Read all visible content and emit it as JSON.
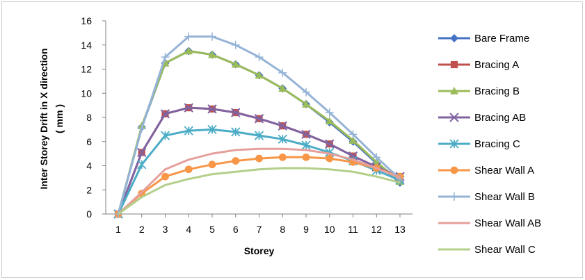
{
  "chart_data": {
    "type": "line",
    "title": "",
    "xlabel": "Storey",
    "ylabel_line1": "Inter  Storey  Drift in X direction",
    "ylabel_line2": "( mm )",
    "x": [
      1,
      2,
      3,
      4,
      5,
      6,
      7,
      8,
      9,
      10,
      11,
      12,
      13
    ],
    "xticks": [
      "1",
      "2",
      "3",
      "4",
      "5",
      "6",
      "7",
      "8",
      "9",
      "10",
      "11",
      "12",
      "13"
    ],
    "yticks": [
      "0",
      "2",
      "4",
      "6",
      "8",
      "10",
      "12",
      "14",
      "16"
    ],
    "ylim": [
      0,
      16
    ],
    "grid": false,
    "legend_position": "right",
    "series": [
      {
        "name": "Bare Frame",
        "color": "#4472C4",
        "marker": "diamond",
        "values": [
          0,
          7.2,
          12.5,
          13.5,
          13.2,
          12.4,
          11.5,
          10.4,
          9.1,
          7.6,
          6.0,
          4.2,
          2.6
        ]
      },
      {
        "name": "Bracing A",
        "color": "#C0504D",
        "marker": "square",
        "values": [
          0,
          5.1,
          8.3,
          8.8,
          8.7,
          8.4,
          7.9,
          7.3,
          6.6,
          5.8,
          4.8,
          3.9,
          3.1
        ]
      },
      {
        "name": "Bracing B",
        "color": "#9BBB59",
        "marker": "triangle",
        "values": [
          0,
          7.3,
          12.5,
          13.5,
          13.2,
          12.4,
          11.5,
          10.4,
          9.1,
          7.7,
          6.1,
          4.3,
          2.7
        ]
      },
      {
        "name": "Bracing AB",
        "color": "#8064A2",
        "marker": "x",
        "values": [
          0,
          5.1,
          8.3,
          8.8,
          8.7,
          8.4,
          7.9,
          7.3,
          6.6,
          5.8,
          4.8,
          3.9,
          3.1
        ]
      },
      {
        "name": "Bracing C",
        "color": "#4BACC6",
        "marker": "star",
        "values": [
          0,
          4.1,
          6.5,
          6.9,
          7.0,
          6.8,
          6.5,
          6.2,
          5.7,
          5.1,
          4.4,
          3.6,
          2.8
        ]
      },
      {
        "name": "Shear Wall A",
        "color": "#F79646",
        "marker": "circle",
        "values": [
          0,
          1.7,
          3.1,
          3.7,
          4.1,
          4.4,
          4.6,
          4.7,
          4.7,
          4.6,
          4.3,
          3.8,
          3.1
        ]
      },
      {
        "name": "Shear Wall B",
        "color": "#95B3D7",
        "marker": "plus",
        "values": [
          0,
          7.1,
          13.0,
          14.7,
          14.7,
          14.0,
          13.0,
          11.7,
          10.1,
          8.4,
          6.6,
          4.7,
          2.9
        ]
      },
      {
        "name": "Shear Wall AB",
        "color": "#E6A09C",
        "marker": "none",
        "values": [
          0,
          1.8,
          3.7,
          4.5,
          5.0,
          5.3,
          5.4,
          5.4,
          5.3,
          5.0,
          4.5,
          3.8,
          3.0
        ]
      },
      {
        "name": "Shear Wall C",
        "color": "#B3CF8A",
        "marker": "none",
        "values": [
          0,
          1.4,
          2.4,
          2.9,
          3.3,
          3.5,
          3.7,
          3.8,
          3.8,
          3.7,
          3.5,
          3.1,
          2.6
        ]
      }
    ]
  }
}
